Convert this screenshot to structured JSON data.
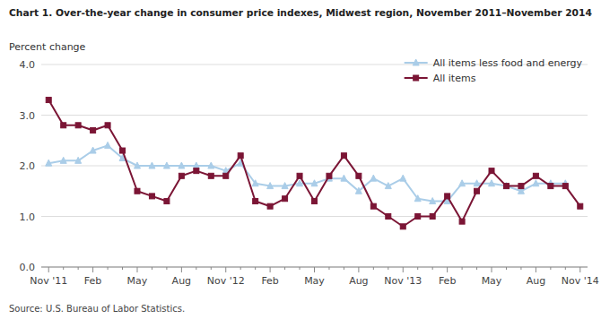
{
  "chart_data": {
    "type": "line",
    "title": "Chart 1. Over-the-year change in consumer price indexes, Midwest region, November 2011–November 2014",
    "y_label": "Percent change",
    "source": "Source: U.S. Bureau of Labor Statistics.",
    "categories": [
      "Nov '11",
      null,
      null,
      "Feb",
      null,
      null,
      "May",
      null,
      null,
      "Aug",
      null,
      null,
      "Nov '12",
      null,
      null,
      "Feb",
      null,
      null,
      "May",
      null,
      null,
      "Aug",
      null,
      null,
      "Nov '13",
      null,
      null,
      "Feb",
      null,
      null,
      "May",
      null,
      null,
      "Aug",
      null,
      null,
      "Nov '14"
    ],
    "series": [
      {
        "name": "All items less food and energy",
        "color": "#AACDE8",
        "marker": "triangle",
        "values": [
          2.05,
          2.1,
          2.1,
          2.3,
          2.4,
          2.15,
          2.0,
          2.0,
          2.0,
          2.0,
          2.0,
          2.0,
          1.9,
          2.05,
          1.65,
          1.6,
          1.6,
          1.65,
          1.65,
          1.75,
          1.75,
          1.5,
          1.75,
          1.6,
          1.75,
          1.35,
          1.3,
          1.3,
          1.65,
          1.65,
          1.65,
          1.6,
          1.5,
          1.65,
          1.65,
          1.65,
          null
        ]
      },
      {
        "name": "All items",
        "color": "#7B1535",
        "marker": "square",
        "values": [
          3.3,
          2.8,
          2.8,
          2.7,
          2.8,
          2.3,
          1.5,
          1.4,
          1.3,
          1.8,
          1.9,
          1.8,
          1.8,
          2.2,
          1.3,
          1.2,
          1.35,
          1.8,
          1.3,
          1.8,
          2.2,
          1.8,
          1.2,
          1.0,
          0.8,
          1.0,
          1.0,
          1.4,
          0.9,
          1.5,
          1.9,
          1.6,
          1.6,
          1.8,
          1.6,
          1.6,
          1.2
        ]
      }
    ],
    "ylim": [
      0.0,
      4.0
    ],
    "yticks": [
      {
        "value": 0.0,
        "label": "0.0"
      },
      {
        "value": 1.0,
        "label": "1.0"
      },
      {
        "value": 2.0,
        "label": "2.0"
      },
      {
        "value": 3.0,
        "label": "3.0"
      },
      {
        "value": 4.0,
        "label": "4.0"
      }
    ],
    "grid": true,
    "legend": "upper right"
  }
}
